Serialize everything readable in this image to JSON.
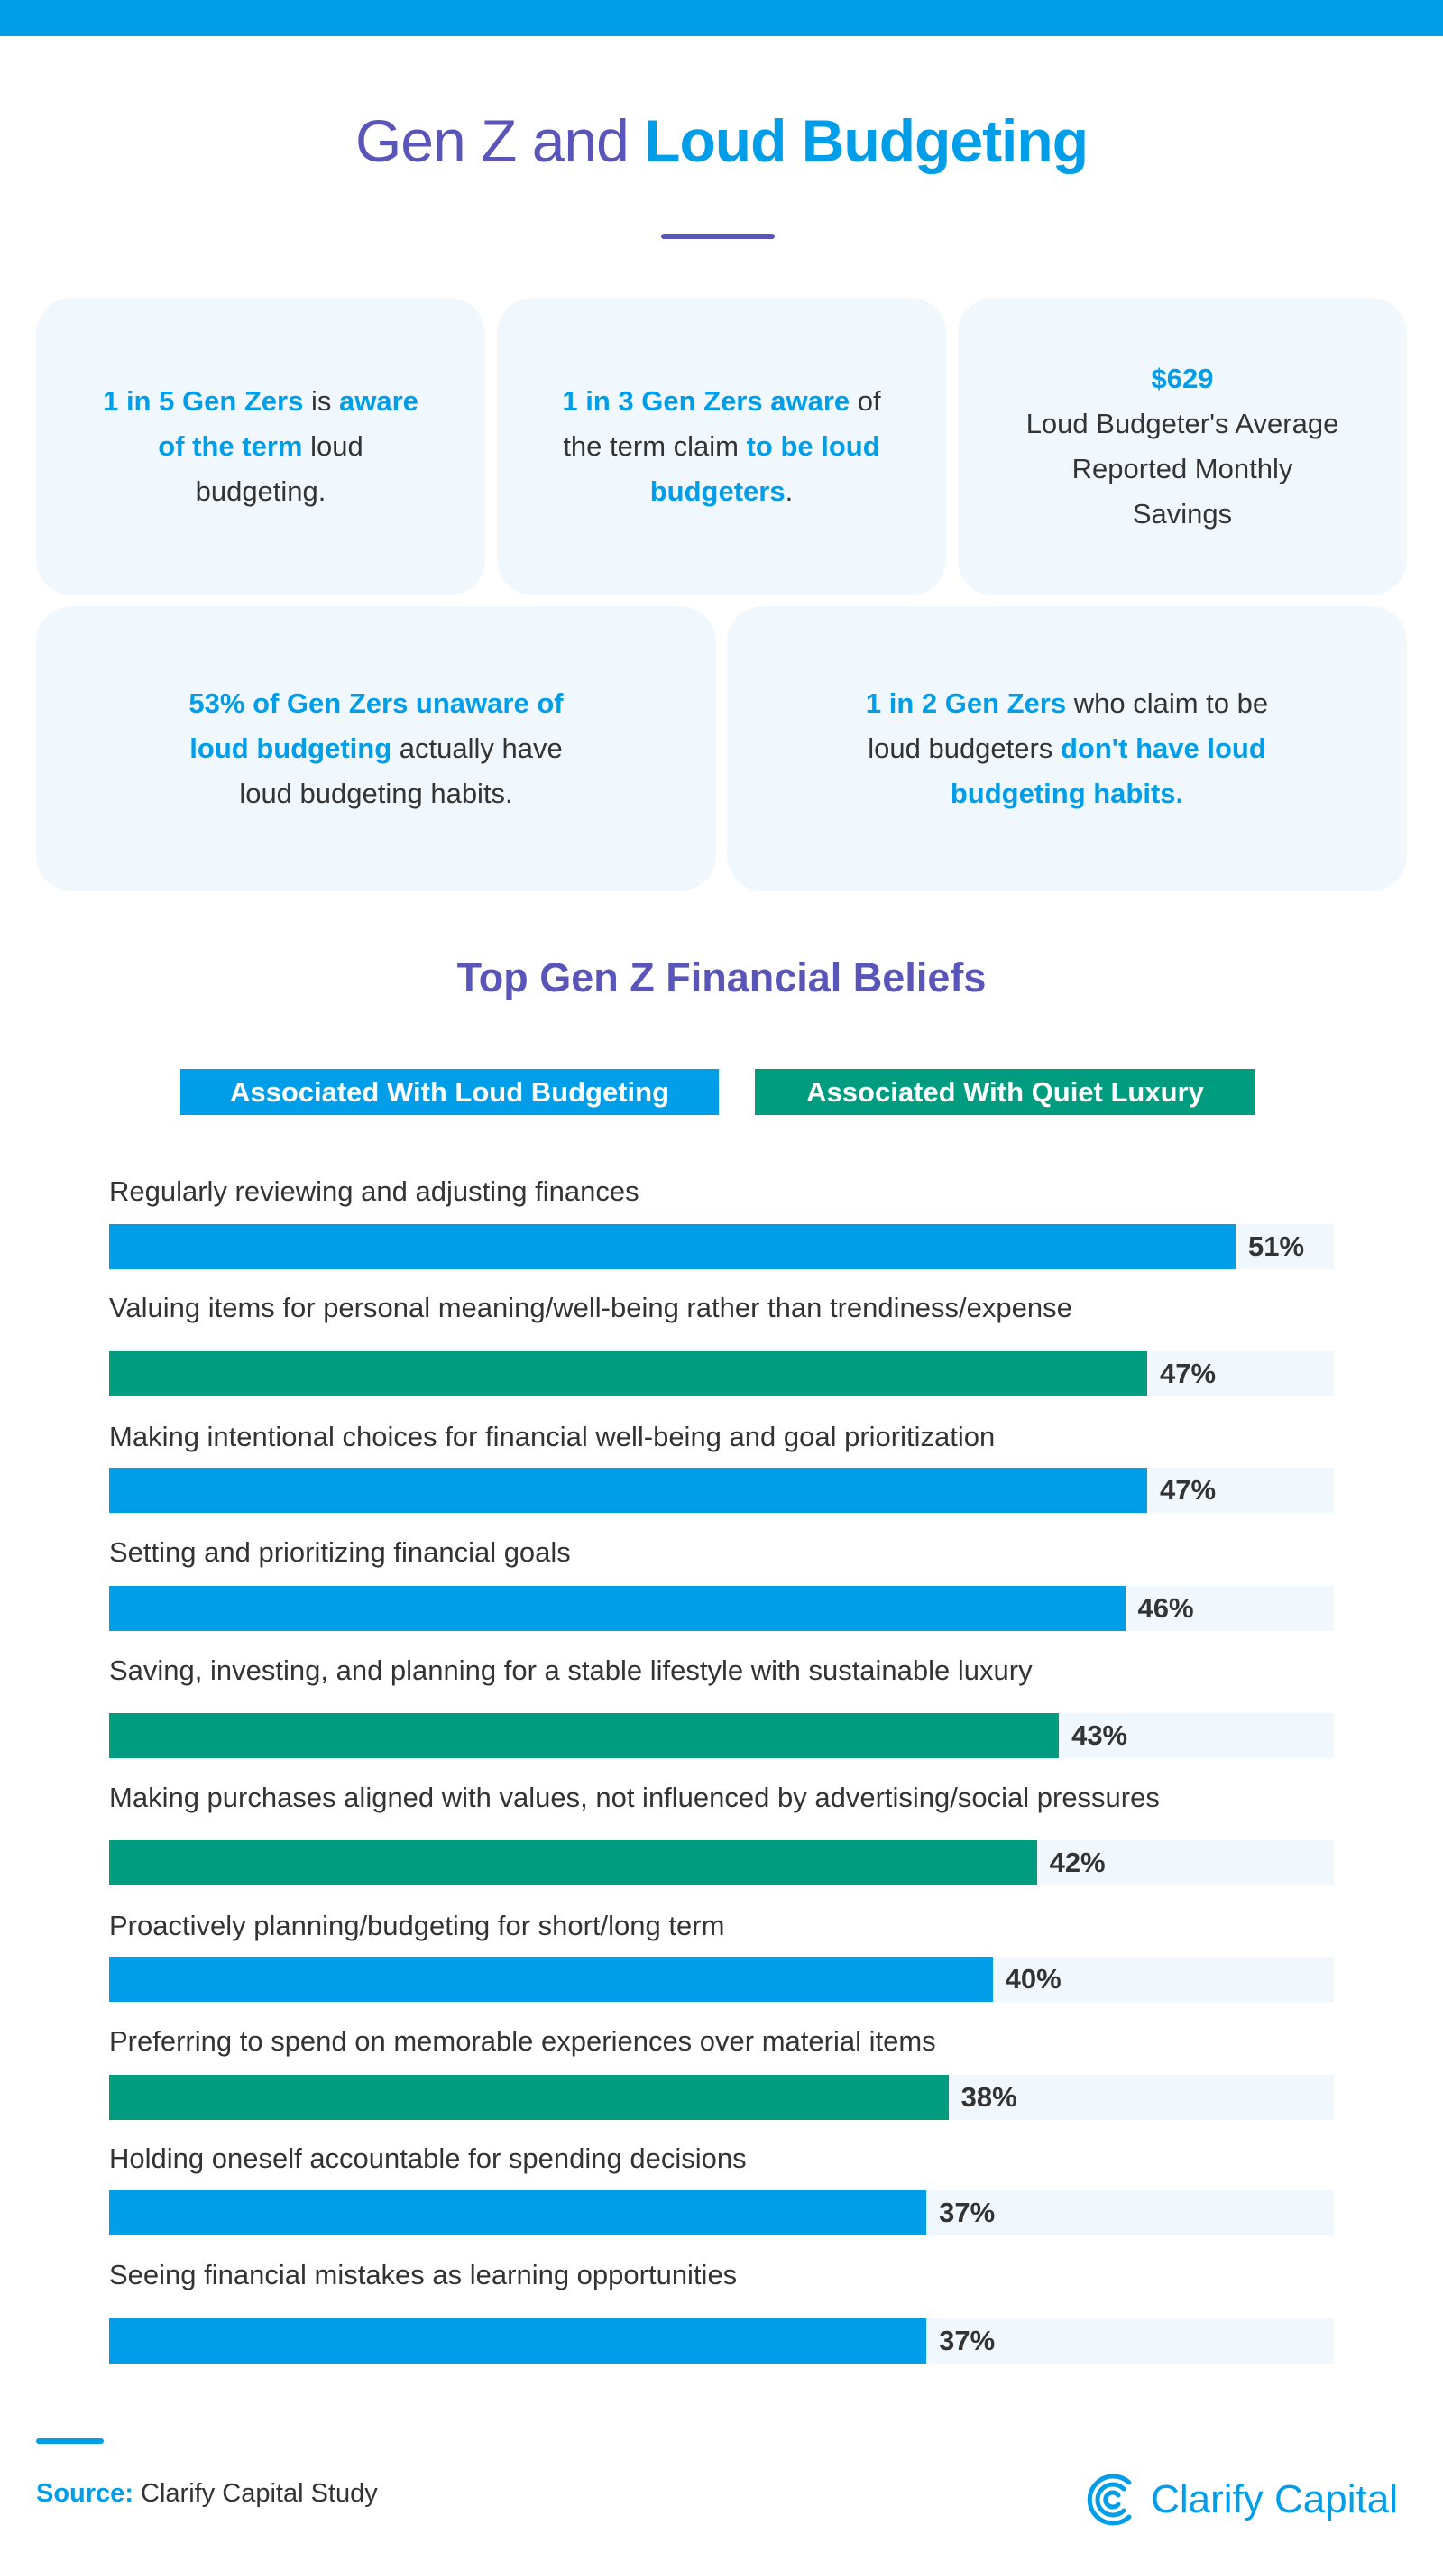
{
  "header": {
    "title_part1": "Gen Z and ",
    "title_part2": "Loud Budgeting"
  },
  "stats": [
    {
      "parts": [
        {
          "t": "1 in 5 Gen Zers",
          "h": true
        },
        {
          "t": " is ",
          "h": false
        },
        {
          "t": "aware of the term",
          "h": true
        },
        {
          "t": " loud budgeting.",
          "h": false
        }
      ]
    },
    {
      "parts": [
        {
          "t": "1 in 3 Gen Zers",
          "h": true
        },
        {
          "t": " ",
          "h": false
        },
        {
          "t": "aware",
          "h": true
        },
        {
          "t": " of the term claim ",
          "h": false
        },
        {
          "t": "to be loud budgeters",
          "h": true
        },
        {
          "t": ".",
          "h": false
        }
      ]
    },
    {
      "parts": [
        {
          "t": "$629",
          "h": true
        },
        {
          "t": " Loud Budgeter's Average Reported Monthly Savings",
          "h": false
        }
      ]
    },
    {
      "parts": [
        {
          "t": "53% of Gen Zers unaware of loud budgeting",
          "h": true
        },
        {
          "t": " actually have loud budgeting habits.",
          "h": false
        }
      ]
    },
    {
      "parts": [
        {
          "t": "1 in 2 Gen Zers",
          "h": true
        },
        {
          "t": " who claim to be loud budgeters ",
          "h": false
        },
        {
          "t": "don't have loud budgeting habits.",
          "h": true
        }
      ]
    }
  ],
  "colors": {
    "loud_budgeting": "#009ee8",
    "quiet_luxury": "#009c80",
    "track": "#f0f8fd",
    "title": "#5a55b8"
  },
  "chart_data": {
    "type": "bar",
    "orientation": "horizontal",
    "title": "Top Gen Z Financial Beliefs",
    "legend": [
      {
        "key": "loud",
        "label": "Associated With Loud Budgeting",
        "color": "#009ee8"
      },
      {
        "key": "quiet",
        "label": "Associated With Quiet Luxury",
        "color": "#009c80"
      }
    ],
    "legend_position": "top",
    "unit": "%",
    "categories": [
      "Regularly reviewing and adjusting finances",
      "Valuing items for personal meaning/well-being rather than trendiness/expense",
      "Making intentional choices for financial well-being and goal prioritization",
      "Setting and prioritizing financial goals",
      "Saving, investing, and planning for a stable lifestyle with sustainable luxury",
      "Making purchases aligned with values, not influenced by advertising/social pressures",
      "Proactively planning/budgeting for short/long term",
      "Preferring to spend on memorable experiences over material items",
      "Holding oneself accountable for spending decisions",
      "Seeing financial mistakes as learning opportunities"
    ],
    "values": [
      51,
      47,
      47,
      46,
      43,
      42,
      40,
      38,
      37,
      37
    ],
    "value_labels": [
      "51%",
      "47%",
      "47%",
      "46%",
      "43%",
      "42%",
      "40%",
      "38%",
      "37%",
      "37%"
    ],
    "groups": [
      "loud",
      "quiet",
      "loud",
      "loud",
      "quiet",
      "quiet",
      "loud",
      "quiet",
      "loud",
      "loud"
    ]
  },
  "footer": {
    "source_label": "Source:",
    "source_text": " Clarify Capital Study",
    "logo_text": "Clarify Capital"
  }
}
